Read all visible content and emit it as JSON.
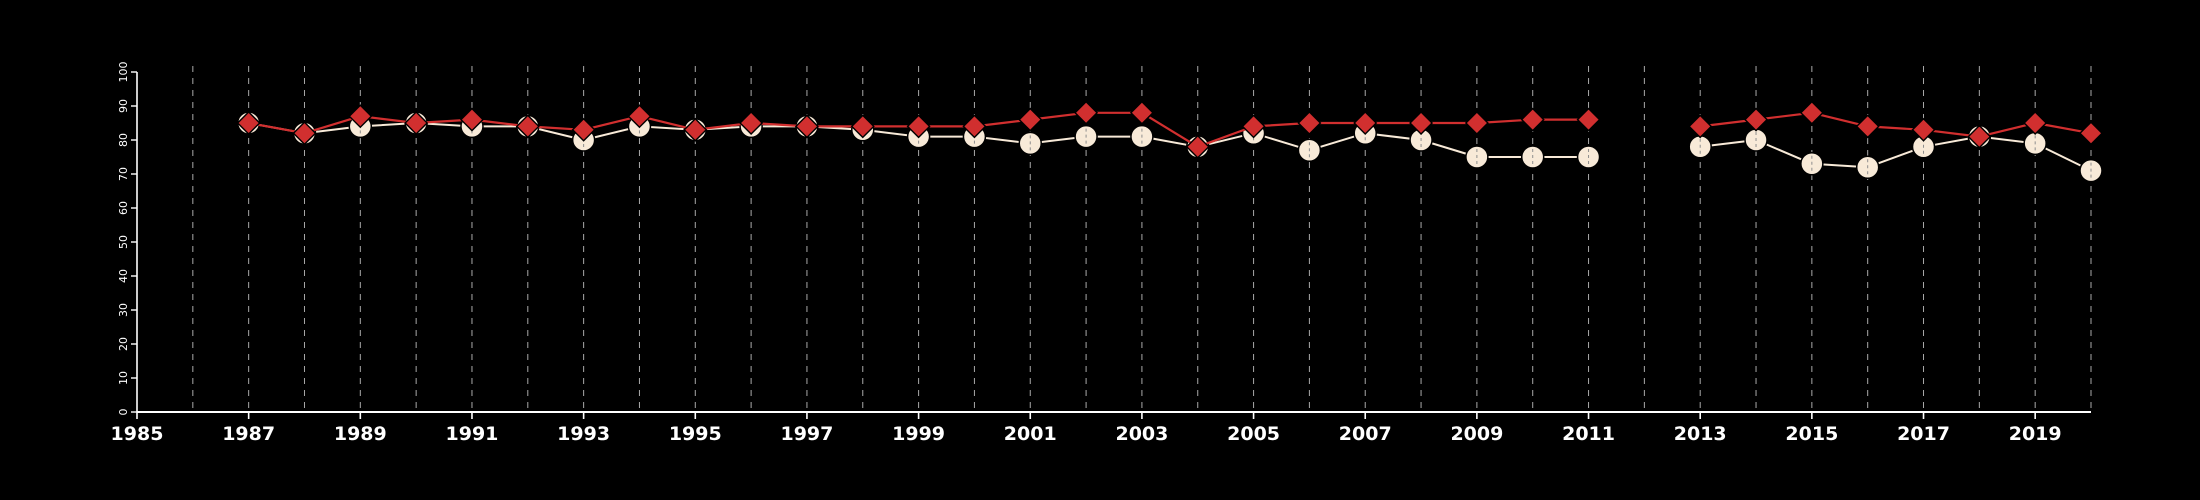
{
  "chart_data": {
    "type": "line",
    "title": "",
    "xlabel": "",
    "ylabel": "",
    "xlim": [
      1985,
      2020
    ],
    "ylim": [
      0,
      100
    ],
    "x_ticks": [
      1985,
      1987,
      1989,
      1991,
      1993,
      1995,
      1997,
      1999,
      2001,
      2003,
      2005,
      2007,
      2009,
      2011,
      2013,
      2015,
      2017,
      2019
    ],
    "y_ticks": [
      0,
      10,
      20,
      30,
      40,
      50,
      60,
      70,
      80,
      90,
      100
    ],
    "x_tick_labels": [
      "1985",
      "1987",
      "1989",
      "1991",
      "1993",
      "1995",
      "1997",
      "1999",
      "2001",
      "2003",
      "2005",
      "2007",
      "2009",
      "2011",
      "2013",
      "2015",
      "2017",
      "2019"
    ],
    "y_tick_labels": [
      "0",
      "10",
      "20",
      "30",
      "40",
      "50",
      "60",
      "70",
      "80",
      "90",
      "100"
    ],
    "vertical_dashed_grid_years": [
      1986,
      1987,
      1988,
      1989,
      1990,
      1991,
      1992,
      1993,
      1994,
      1995,
      1996,
      1997,
      1998,
      1999,
      2000,
      2001,
      2002,
      2003,
      2004,
      2005,
      2006,
      2007,
      2008,
      2009,
      2010,
      2011,
      2012,
      2013,
      2014,
      2015,
      2016,
      2017,
      2018,
      2019,
      2020
    ],
    "series": [
      {
        "marker": "circle",
        "color": "#f8ead8",
        "x": [
          1987,
          1988,
          1989,
          1990,
          1991,
          1992,
          1993,
          1994,
          1995,
          1996,
          1997,
          1998,
          1999,
          2000,
          2001,
          2002,
          2003,
          2004,
          2005,
          2006,
          2007,
          2008,
          2009,
          2010,
          2011,
          2013,
          2014,
          2015,
          2016,
          2017,
          2018,
          2019,
          2020
        ],
        "values": [
          85,
          82,
          84,
          85,
          84,
          84,
          80,
          84,
          83,
          84,
          84,
          83,
          81,
          81,
          79,
          81,
          81,
          78,
          82,
          77,
          82,
          80,
          75,
          75,
          75,
          78,
          80,
          73,
          72,
          78,
          81,
          79,
          71
        ]
      },
      {
        "marker": "diamond",
        "color": "#d12f2f",
        "x": [
          1987,
          1988,
          1989,
          1990,
          1991,
          1992,
          1993,
          1994,
          1995,
          1996,
          1997,
          1998,
          1999,
          2000,
          2001,
          2002,
          2003,
          2004,
          2005,
          2006,
          2007,
          2008,
          2009,
          2010,
          2011,
          2013,
          2014,
          2015,
          2016,
          2017,
          2018,
          2019,
          2020
        ],
        "values": [
          85,
          82,
          87,
          85,
          86,
          84,
          83,
          87,
          83,
          85,
          84,
          84,
          84,
          84,
          86,
          88,
          88,
          78,
          84,
          85,
          85,
          85,
          85,
          86,
          86,
          84,
          86,
          88,
          84,
          83,
          81,
          85,
          82
        ]
      }
    ]
  }
}
